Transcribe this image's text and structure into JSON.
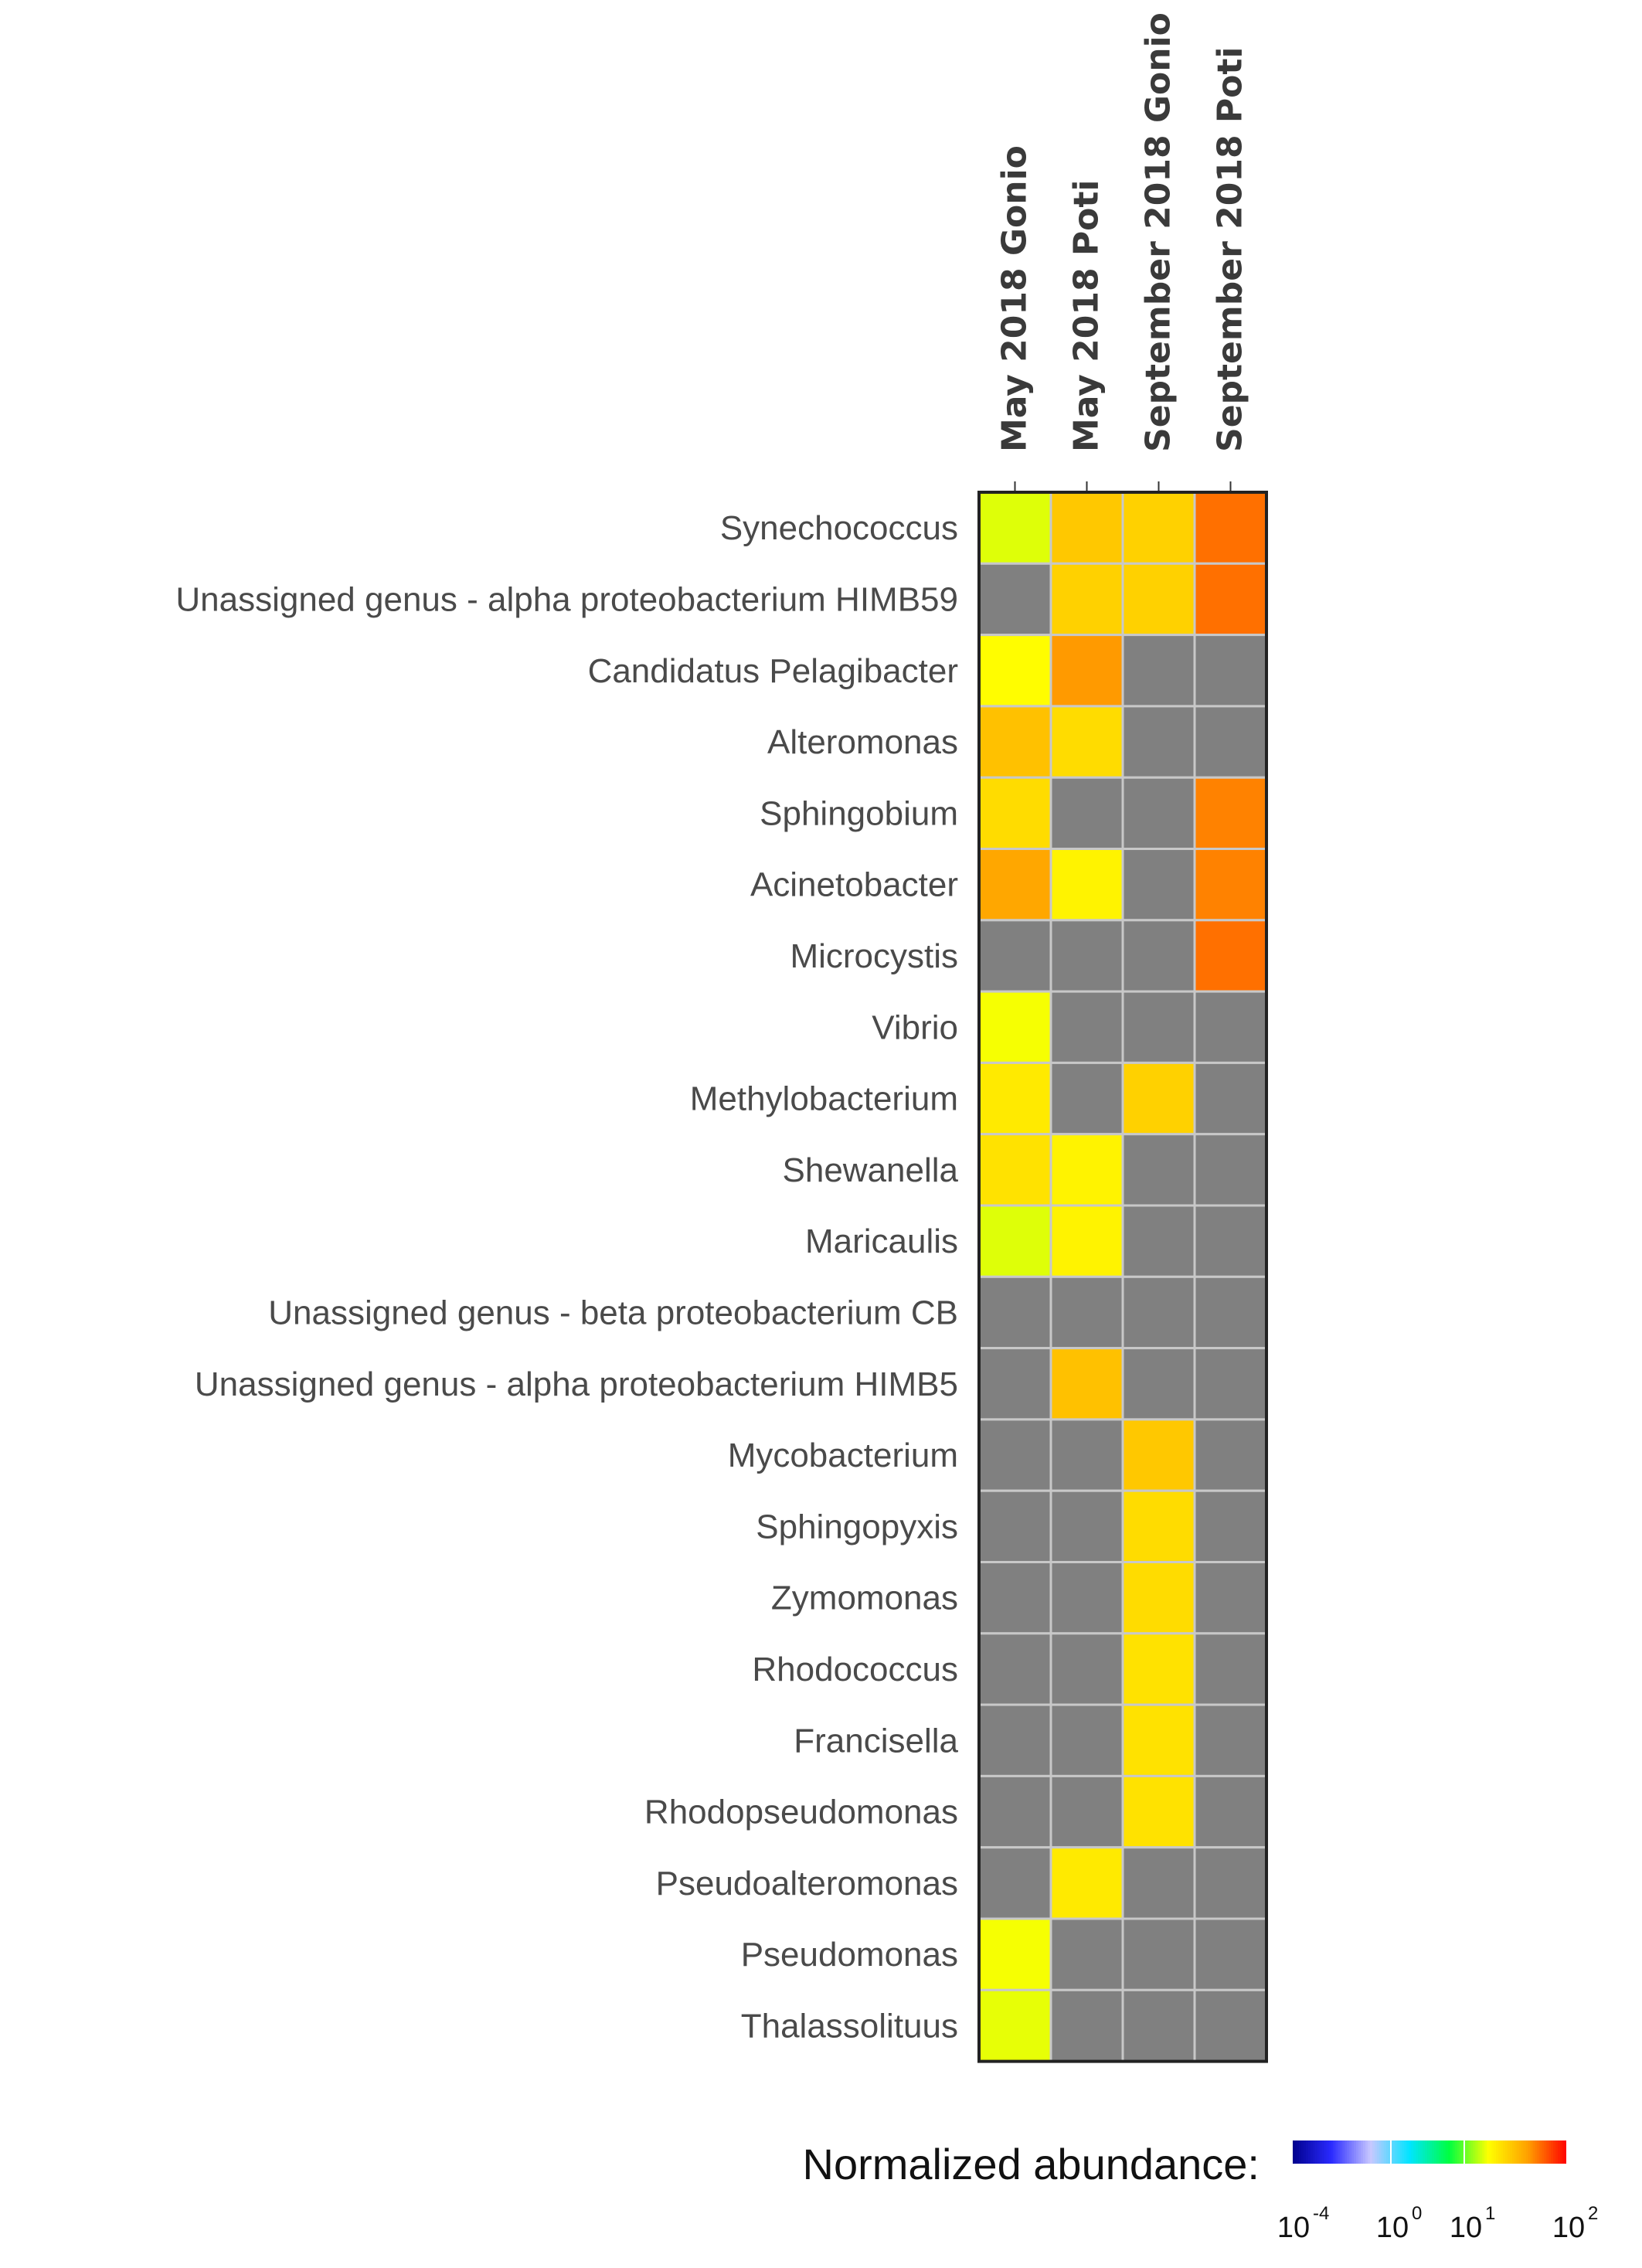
{
  "chart_data": {
    "type": "heatmap",
    "columns": [
      "May 2018 Gonio",
      "May 2018 Poti",
      "September 2018 Gonio",
      "September 2018 Poti"
    ],
    "rows": [
      "Synechococcus",
      "Unassigned genus - alpha proteobacterium HIMB59",
      "Candidatus Pelagibacter",
      "Alteromonas",
      "Sphingobium",
      "Acinetobacter",
      "Microcystis",
      "Vibrio",
      "Methylobacterium",
      "Shewanella",
      "Maricaulis",
      "Unassigned genus - beta proteobacterium CB",
      "Unassigned genus - alpha proteobacterium HIMB5",
      "Mycobacterium",
      "Sphingopyxis",
      "Zymomonas",
      "Rhodococcus",
      "Francisella",
      "Rhodopseudomonas",
      "Pseudoalteromonas",
      "Pseudomonas",
      "Thalassolituus"
    ],
    "values": [
      [
        1.5,
        6,
        5,
        25
      ],
      [
        null,
        5,
        5,
        25
      ],
      [
        2,
        15,
        null,
        null
      ],
      [
        7,
        4,
        null,
        null
      ],
      [
        4,
        null,
        null,
        20
      ],
      [
        12,
        2.5,
        null,
        20
      ],
      [
        null,
        null,
        null,
        25
      ],
      [
        1.8,
        null,
        null,
        null
      ],
      [
        3,
        null,
        5,
        null
      ],
      [
        3.5,
        2.5,
        null,
        null
      ],
      [
        1.5,
        2.5,
        null,
        null
      ],
      [
        null,
        null,
        null,
        null
      ],
      [
        null,
        7,
        null,
        null
      ],
      [
        null,
        null,
        6,
        null
      ],
      [
        null,
        null,
        4,
        null
      ],
      [
        null,
        null,
        4,
        null
      ],
      [
        null,
        null,
        3.5,
        null
      ],
      [
        null,
        null,
        3.5,
        null
      ],
      [
        null,
        null,
        3.5,
        null
      ],
      [
        null,
        3,
        null,
        null
      ],
      [
        1.8,
        null,
        null,
        null
      ],
      [
        1.6,
        null,
        null,
        null
      ]
    ],
    "scale": "log",
    "missing_color": "#808080",
    "legend": {
      "title": "Normalized abundance:",
      "ticks": [
        {
          "base": "10",
          "exp": "-4"
        },
        {
          "base": "10",
          "exp": "0"
        },
        {
          "base": "10",
          "exp": "1"
        },
        {
          "base": "10",
          "exp": "2"
        }
      ],
      "log_range": [
        -4,
        2
      ]
    },
    "colors": {
      "colormap": [
        "#00008b",
        "#2a2aff",
        "#c8c8ff",
        "#00e5ff",
        "#00ff40",
        "#ffff00",
        "#ffa000",
        "#ff0000"
      ],
      "grid_line": "#c8c8c8",
      "border": "#222222"
    }
  }
}
